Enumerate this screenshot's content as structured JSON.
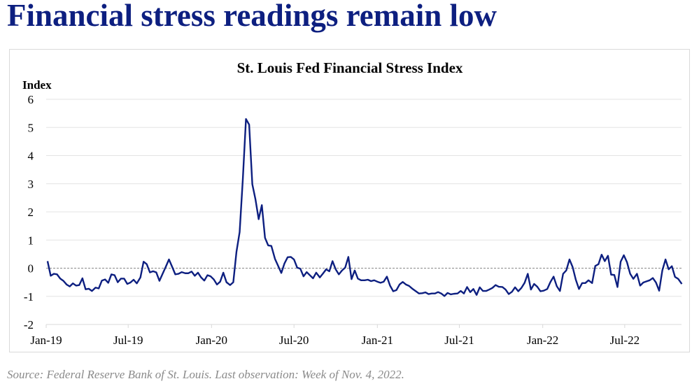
{
  "headline": "Financial stress readings remain low",
  "source": "Source: Federal Reserve Bank of St. Louis. Last observation: Week of Nov. 4, 2022.",
  "chart_data": {
    "type": "line",
    "title": "St. Louis Fed Financial Stress Index",
    "ylabel": "Index",
    "xlabel": "",
    "ylim": [
      -2,
      6
    ],
    "yticks": [
      "6",
      "5",
      "4",
      "3",
      "2",
      "1",
      "0",
      "-1",
      "-2"
    ],
    "xticks": [
      {
        "label": "Jan-19",
        "date": "2019-01-01"
      },
      {
        "label": "Jul-19",
        "date": "2019-07-01"
      },
      {
        "label": "Jan-20",
        "date": "2020-01-01"
      },
      {
        "label": "Jul-20",
        "date": "2020-07-01"
      },
      {
        "label": "Jan-21",
        "date": "2021-01-01"
      },
      {
        "label": "Jul-21",
        "date": "2021-07-01"
      },
      {
        "label": "Jan-22",
        "date": "2022-01-01"
      },
      {
        "label": "Jul-22",
        "date": "2022-07-01"
      }
    ],
    "grid": true,
    "zero_line": "dashed",
    "line_color": "#0d1f80",
    "frequency": "weekly",
    "first_observation": "2019-01-04",
    "last_observation": "2022-11-04",
    "series": [
      {
        "values": [
          0.25,
          -0.27,
          -0.2,
          -0.22,
          -0.37,
          -0.45,
          -0.58,
          -0.65,
          -0.54,
          -0.62,
          -0.6,
          -0.36,
          -0.75,
          -0.73,
          -0.81,
          -0.69,
          -0.72,
          -0.44,
          -0.4,
          -0.52,
          -0.22,
          -0.25,
          -0.5,
          -0.37,
          -0.37,
          -0.56,
          -0.51,
          -0.41,
          -0.54,
          -0.33,
          0.23,
          0.14,
          -0.15,
          -0.11,
          -0.15,
          -0.45,
          -0.2,
          0.05,
          0.31,
          0.05,
          -0.22,
          -0.2,
          -0.14,
          -0.18,
          -0.18,
          -0.12,
          -0.27,
          -0.16,
          -0.33,
          -0.44,
          -0.25,
          -0.29,
          -0.4,
          -0.58,
          -0.48,
          -0.16,
          -0.5,
          -0.6,
          -0.5,
          0.58,
          1.28,
          3.15,
          5.3,
          5.1,
          2.98,
          2.44,
          1.74,
          2.24,
          1.08,
          0.81,
          0.79,
          0.33,
          0.08,
          -0.17,
          0.17,
          0.39,
          0.4,
          0.31,
          0.02,
          -0.02,
          -0.29,
          -0.14,
          -0.25,
          -0.36,
          -0.16,
          -0.33,
          -0.19,
          -0.04,
          -0.11,
          0.25,
          -0.04,
          -0.22,
          -0.08,
          0.02,
          0.4,
          -0.39,
          -0.08,
          -0.37,
          -0.43,
          -0.43,
          -0.41,
          -0.46,
          -0.43,
          -0.48,
          -0.52,
          -0.48,
          -0.3,
          -0.62,
          -0.82,
          -0.78,
          -0.58,
          -0.49,
          -0.58,
          -0.63,
          -0.74,
          -0.82,
          -0.9,
          -0.89,
          -0.86,
          -0.92,
          -0.9,
          -0.9,
          -0.85,
          -0.9,
          -0.99,
          -0.88,
          -0.93,
          -0.91,
          -0.9,
          -0.81,
          -0.9,
          -0.67,
          -0.85,
          -0.74,
          -0.95,
          -0.68,
          -0.81,
          -0.81,
          -0.76,
          -0.7,
          -0.6,
          -0.66,
          -0.67,
          -0.76,
          -0.92,
          -0.84,
          -0.68,
          -0.82,
          -0.7,
          -0.52,
          -0.2,
          -0.76,
          -0.56,
          -0.66,
          -0.82,
          -0.8,
          -0.74,
          -0.49,
          -0.3,
          -0.64,
          -0.81,
          -0.2,
          -0.08,
          0.31,
          0.04,
          -0.41,
          -0.74,
          -0.53,
          -0.53,
          -0.43,
          -0.53,
          0.08,
          0.14,
          0.48,
          0.25,
          0.44,
          -0.23,
          -0.24,
          -0.67,
          0.23,
          0.46,
          0.21,
          -0.2,
          -0.38,
          -0.2,
          -0.62,
          -0.51,
          -0.47,
          -0.43,
          -0.35,
          -0.51,
          -0.8,
          -0.08,
          0.31,
          -0.04,
          0.07,
          -0.31,
          -0.38,
          -0.56
        ]
      }
    ]
  }
}
